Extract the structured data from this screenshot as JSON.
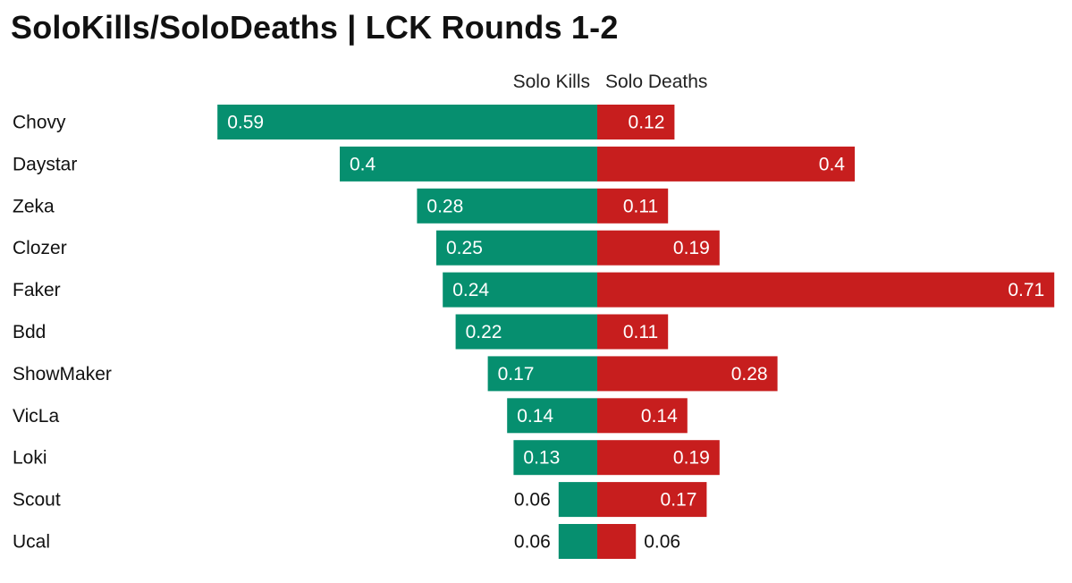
{
  "chart_data": {
    "type": "bar",
    "title": "SoloKills/SoloDeaths | LCK Rounds 1-2",
    "categories": [
      "Chovy",
      "Daystar",
      "Zeka",
      "Clozer",
      "Faker",
      "Bdd",
      "ShowMaker",
      "VicLa",
      "Loki",
      "Scout",
      "Ucal"
    ],
    "series": [
      {
        "name": "Solo Kills",
        "color": "#068f6f",
        "values": [
          0.59,
          0.4,
          0.28,
          0.25,
          0.24,
          0.22,
          0.17,
          0.14,
          0.13,
          0.06,
          0.06
        ]
      },
      {
        "name": "Solo Deaths",
        "color": "#c71e1e",
        "values": [
          0.12,
          0.4,
          0.11,
          0.19,
          0.71,
          0.11,
          0.28,
          0.14,
          0.19,
          0.17,
          0.06
        ]
      }
    ],
    "value_labels": {
      "kills": [
        "0.59",
        "0.4",
        "0.28",
        "0.25",
        "0.24",
        "0.22",
        "0.17",
        "0.14",
        "0.13",
        "0.06",
        "0.06"
      ],
      "deaths": [
        "0.12",
        "0.4",
        "0.11",
        "0.19",
        "0.71",
        "0.11",
        "0.28",
        "0.14",
        "0.19",
        "0.17",
        "0.06"
      ]
    },
    "layout": "diverging, kills extend left, deaths extend right",
    "grid": false
  }
}
